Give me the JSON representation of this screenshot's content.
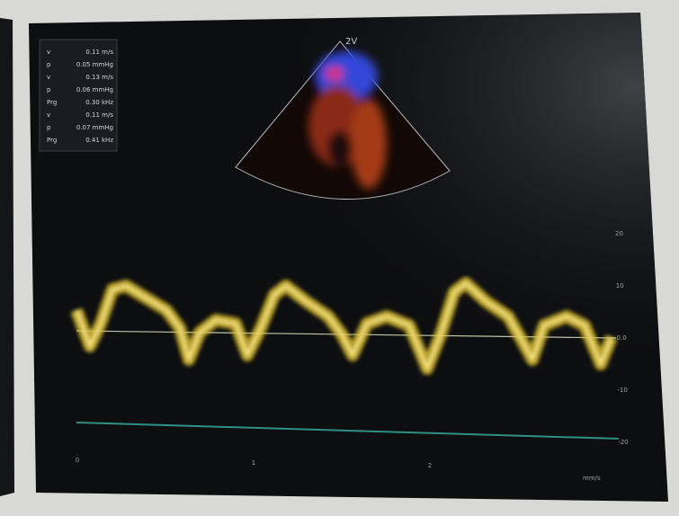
{
  "screen": {
    "measurements": [
      {
        "label": "v",
        "value": "0.11 m/s"
      },
      {
        "label": "p",
        "value": "0.05 mmHg"
      },
      {
        "label": "v",
        "value": "0.13 m/s"
      },
      {
        "label": "p",
        "value": "0.06 mmHg"
      },
      {
        "label": "Prg",
        "value": "0.30 kHz"
      },
      {
        "label": "v",
        "value": "0.11 m/s"
      },
      {
        "label": "p",
        "value": "0.07 mmHg"
      },
      {
        "label": "Prg",
        "value": "0.41 kHz"
      }
    ],
    "sector_label": "2V",
    "scale_labels": [
      "20",
      "10",
      "0.0",
      "-10",
      "-20"
    ],
    "time_labels": [
      "0",
      "1",
      "2"
    ],
    "speed_label": "mm/s"
  }
}
